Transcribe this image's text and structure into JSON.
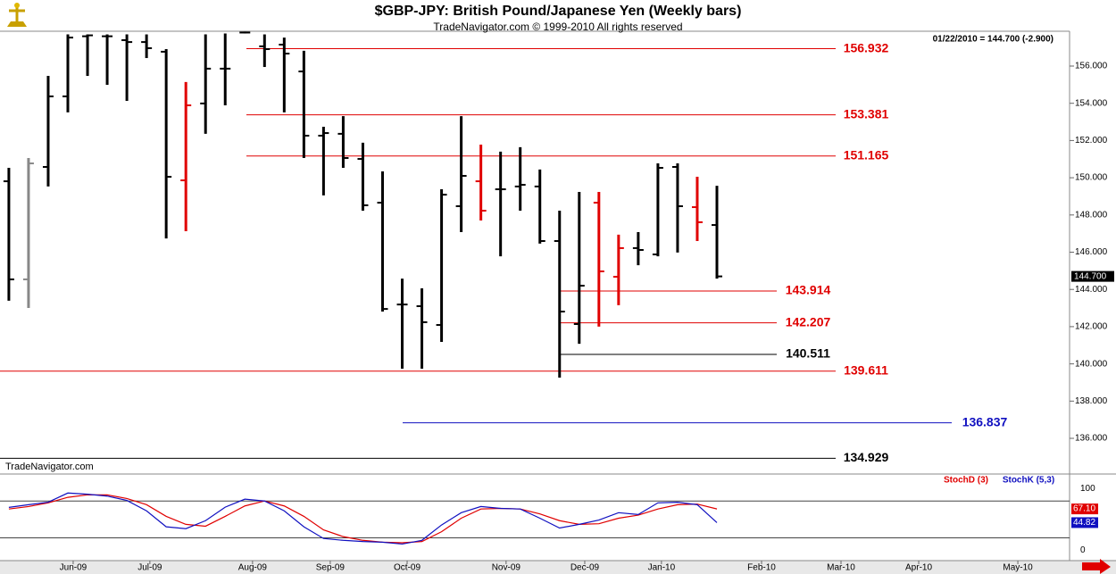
{
  "header": {
    "title": "$GBP-JPY:  British Pound/Japanese Yen  (Weekly bars)",
    "subtitle": "TradeNavigator.com © 1999-2010 All rights reserved",
    "quote": "01/22/2010 = 144.700 (-2.900)",
    "watermark": "TradeNavigator.com"
  },
  "chart_data": [
    {
      "type": "ohlc",
      "x": [
        0,
        1,
        2,
        3,
        4,
        5,
        6,
        7,
        8,
        9,
        10,
        11,
        12,
        13,
        14,
        15,
        16,
        17,
        18,
        19,
        20,
        21,
        22,
        23,
        24,
        25,
        26,
        27,
        28,
        29,
        30,
        31,
        32,
        33,
        34,
        35,
        36
      ],
      "open": [
        149.81,
        144.54,
        150.58,
        154.37,
        157.6,
        157.6,
        157.39,
        157.29,
        156.77,
        149.86,
        153.99,
        155.86,
        157.8,
        157.06,
        157.15,
        155.71,
        152.26,
        152.36,
        151.01,
        148.66,
        143.19,
        143.1,
        142.09,
        148.47,
        149.81,
        149.38,
        149.53,
        149.53,
        146.6,
        142.14,
        148.66,
        144.68,
        146.22,
        145.88,
        150.58,
        148.42,
        147.46
      ],
      "high": [
        150.53,
        151.06,
        155.47,
        157.7,
        157.7,
        157.7,
        157.7,
        157.7,
        156.91,
        155.14,
        157.7,
        157.75,
        157.85,
        157.7,
        157.53,
        156.82,
        152.74,
        153.31,
        151.88,
        150.34,
        144.58,
        144.06,
        149.38,
        153.31,
        151.78,
        151.4,
        151.64,
        150.44,
        148.23,
        149.24,
        149.24,
        146.94,
        147.08,
        150.77,
        150.77,
        150.05,
        149.57
      ],
      "low": [
        143.39,
        143.0,
        149.53,
        153.51,
        155.47,
        154.99,
        154.13,
        156.43,
        146.74,
        147.13,
        152.36,
        153.89,
        157.75,
        155.95,
        153.51,
        151.06,
        149.05,
        150.53,
        148.23,
        142.81,
        139.74,
        139.74,
        141.18,
        147.08,
        147.7,
        145.78,
        148.23,
        146.46,
        139.26,
        141.08,
        142.0,
        143.15,
        145.3,
        145.78,
        145.98,
        146.6,
        144.58
      ],
      "close": [
        144.54,
        150.77,
        154.37,
        157.53,
        157.65,
        157.6,
        157.29,
        156.96,
        150.05,
        153.89,
        155.86,
        155.86,
        157.8,
        156.91,
        156.67,
        152.26,
        152.4,
        151.06,
        148.52,
        142.95,
        143.19,
        142.24,
        149.09,
        150.1,
        148.23,
        149.38,
        149.62,
        146.6,
        142.81,
        144.2,
        144.97,
        146.22,
        146.12,
        150.53,
        148.47,
        147.61,
        144.7
      ],
      "colors": [
        "#000000",
        "#888888",
        "#000000",
        "#000000",
        "#000000",
        "#000000",
        "#000000",
        "#000000",
        "#000000",
        "#e00000",
        "#000000",
        "#000000",
        "#000000",
        "#000000",
        "#000000",
        "#000000",
        "#000000",
        "#000000",
        "#000000",
        "#000000",
        "#000000",
        "#000000",
        "#000000",
        "#000000",
        "#e00000",
        "#000000",
        "#000000",
        "#000000",
        "#000000",
        "#000000",
        "#e00000",
        "#e00000",
        "#000000",
        "#000000",
        "#000000",
        "#e00000",
        "#000000"
      ],
      "last_label": "144.700",
      "levels": [
        {
          "value": 156.932,
          "label": "156.932",
          "color": "#e00000"
        },
        {
          "value": 153.381,
          "label": "153.381",
          "color": "#e00000"
        },
        {
          "value": 151.165,
          "label": "151.165",
          "color": "#e00000"
        },
        {
          "value": 143.914,
          "label": "143.914",
          "color": "#e00000"
        },
        {
          "value": 142.207,
          "label": "142.207",
          "color": "#e00000"
        },
        {
          "value": 140.511,
          "label": "140.511",
          "color": "#000000"
        },
        {
          "value": 139.611,
          "label": "139.611",
          "color": "#e00000"
        },
        {
          "value": 136.837,
          "label": "136.837",
          "color": "#1010c0"
        },
        {
          "value": 134.929,
          "label": "134.929",
          "color": "#000000"
        }
      ],
      "xlim": [
        -0.45,
        53.93
      ],
      "ylim": [
        134.85,
        157.87
      ],
      "yticks": [
        {
          "value": 136,
          "label": "136.000"
        },
        {
          "value": 138,
          "label": "138.000"
        },
        {
          "value": 140,
          "label": "140.000"
        },
        {
          "value": 142,
          "label": "142.000"
        },
        {
          "value": 144,
          "label": "144.000"
        },
        {
          "value": 146,
          "label": "146.000"
        },
        {
          "value": 148,
          "label": "148.000"
        },
        {
          "value": 150,
          "label": "150.000"
        },
        {
          "value": 152,
          "label": "152.000"
        },
        {
          "value": 154,
          "label": "154.000"
        },
        {
          "value": 156,
          "label": "156.000"
        }
      ],
      "xticks": [
        {
          "value": 3.27,
          "label": "Jun-09"
        },
        {
          "value": 7.17,
          "label": "Jul-09"
        },
        {
          "value": 12.39,
          "label": "Aug-09"
        },
        {
          "value": 16.34,
          "label": "Sep-09"
        },
        {
          "value": 20.25,
          "label": "Oct-09"
        },
        {
          "value": 25.28,
          "label": "Nov-09"
        },
        {
          "value": 29.28,
          "label": "Dec-09"
        },
        {
          "value": 33.18,
          "label": "Jan-10"
        },
        {
          "value": 38.27,
          "label": "Feb-10"
        },
        {
          "value": 42.31,
          "label": "Mar-10"
        },
        {
          "value": 46.26,
          "label": "Apr-10"
        },
        {
          "value": 51.3,
          "label": "May-10"
        }
      ]
    },
    {
      "type": "line",
      "ylim": [
        -17,
        121
      ],
      "yticks": [
        0,
        100
      ],
      "levels": [
        20,
        80
      ],
      "series": [
        {
          "name": "StochD (3)",
          "color": "#e00000",
          "last_label": "67.10",
          "values": [
            67,
            71,
            77,
            86,
            90,
            90,
            84,
            74,
            55,
            42,
            39,
            55,
            72,
            80,
            72,
            55,
            33,
            22,
            16,
            13,
            12,
            14,
            30,
            52,
            67,
            68,
            67,
            59,
            48,
            42,
            43,
            52,
            57,
            67,
            74,
            75,
            67.1
          ]
        },
        {
          "name": "StochK (5,3)",
          "color": "#1010c0",
          "last_label": "44.82",
          "values": [
            69.6,
            74,
            78,
            93,
            91,
            88,
            81,
            64,
            38,
            35,
            48,
            70,
            83,
            80,
            64,
            38,
            19,
            16,
            14,
            13,
            10,
            16,
            41,
            61,
            71,
            68,
            67,
            52,
            36,
            42,
            49,
            61,
            58,
            77,
            78,
            74,
            44.82
          ]
        }
      ]
    }
  ]
}
